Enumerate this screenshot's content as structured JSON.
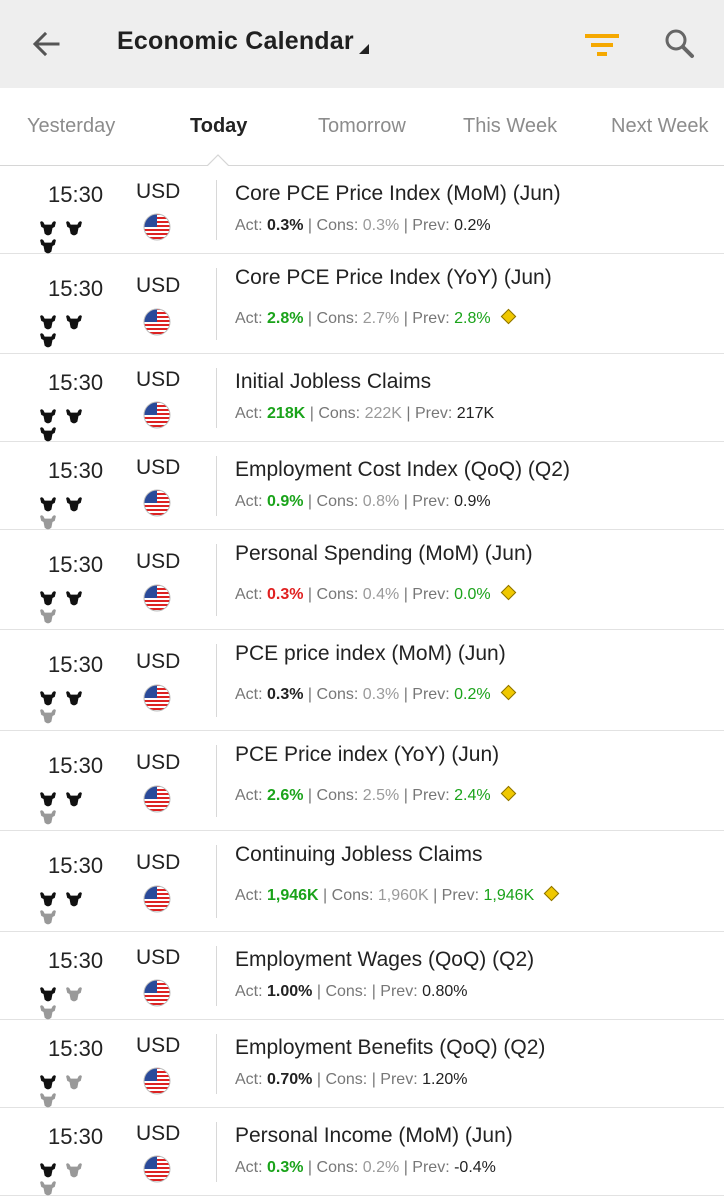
{
  "header": {
    "title": "Economic Calendar",
    "icons": {
      "back": "arrow-back-icon",
      "caret": "dropdown-caret-icon",
      "filter": "filter-icon",
      "search": "search-icon"
    },
    "colors": {
      "bar": "#eeeeee",
      "filter_accent": "#f5a800"
    }
  },
  "tabs": [
    {
      "label": "Yesterday",
      "active": false
    },
    {
      "label": "Today",
      "active": true
    },
    {
      "label": "Tomorrow",
      "active": false
    },
    {
      "label": "This Week",
      "active": false
    },
    {
      "label": "Next Week",
      "active": false
    }
  ],
  "labels": {
    "act": "Act: ",
    "cons": "Cons: ",
    "prev": "Prev: ",
    "sep": " | "
  },
  "colors": {
    "positive": "#1aa31a",
    "negative": "#e02020",
    "revised_marker": "#f0c800"
  },
  "events": [
    {
      "time": "15:30",
      "currency": "USD",
      "importance": 3,
      "name": "Core PCE Price Index (MoM) (Jun)",
      "act": "0.3%",
      "act_color": "neutral",
      "cons": "0.3%",
      "prev": "0.2%",
      "prev_color": "neutral",
      "revised": false
    },
    {
      "time": "15:30",
      "currency": "USD",
      "importance": 3,
      "name": "Core PCE Price Index (YoY) (Jun)",
      "act": "2.8%",
      "act_color": "green",
      "cons": "2.7%",
      "prev": "2.8%",
      "prev_color": "green",
      "revised": true
    },
    {
      "time": "15:30",
      "currency": "USD",
      "importance": 3,
      "name": "Initial Jobless Claims",
      "act": "218K",
      "act_color": "green",
      "cons": "222K",
      "prev": "217K",
      "prev_color": "neutral",
      "revised": false
    },
    {
      "time": "15:30",
      "currency": "USD",
      "importance": 2,
      "name": "Employment Cost Index (QoQ) (Q2)",
      "act": "0.9%",
      "act_color": "green",
      "cons": "0.8%",
      "prev": "0.9%",
      "prev_color": "neutral",
      "revised": false
    },
    {
      "time": "15:30",
      "currency": "USD",
      "importance": 2,
      "name": "Personal Spending (MoM) (Jun)",
      "act": "0.3%",
      "act_color": "red",
      "cons": "0.4%",
      "prev": "0.0%",
      "prev_color": "green",
      "revised": true
    },
    {
      "time": "15:30",
      "currency": "USD",
      "importance": 2,
      "name": "PCE price index (MoM) (Jun)",
      "act": "0.3%",
      "act_color": "neutral",
      "cons": "0.3%",
      "prev": "0.2%",
      "prev_color": "green",
      "revised": true
    },
    {
      "time": "15:30",
      "currency": "USD",
      "importance": 2,
      "name": "PCE Price index (YoY) (Jun)",
      "act": "2.6%",
      "act_color": "green",
      "cons": "2.5%",
      "prev": "2.4%",
      "prev_color": "green",
      "revised": true
    },
    {
      "time": "15:30",
      "currency": "USD",
      "importance": 2,
      "name": "Continuing Jobless Claims",
      "act": "1,946K",
      "act_color": "green",
      "cons": "1,960K",
      "prev": "1,946K",
      "prev_color": "green",
      "revised": true
    },
    {
      "time": "15:30",
      "currency": "USD",
      "importance": 1,
      "name": "Employment Wages (QoQ) (Q2)",
      "act": "1.00%",
      "act_color": "neutral",
      "cons": "",
      "prev": "0.80%",
      "prev_color": "neutral",
      "revised": false
    },
    {
      "time": "15:30",
      "currency": "USD",
      "importance": 1,
      "name": "Employment Benefits (QoQ) (Q2)",
      "act": "0.70%",
      "act_color": "neutral",
      "cons": "",
      "prev": "1.20%",
      "prev_color": "neutral",
      "revised": false
    },
    {
      "time": "15:30",
      "currency": "USD",
      "importance": 1,
      "name": "Personal Income (MoM) (Jun)",
      "act": "0.3%",
      "act_color": "green",
      "cons": "0.2%",
      "prev": "-0.4%",
      "prev_color": "neutral",
      "revised": false
    }
  ]
}
